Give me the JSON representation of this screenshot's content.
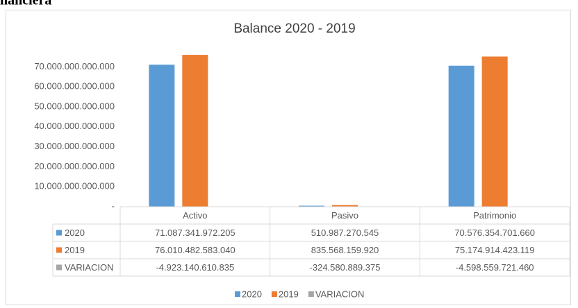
{
  "page_fragment": "nanciera",
  "chart_data": {
    "type": "bar",
    "title": "Balance 2020 - 2019",
    "categories": [
      "Activo",
      "Pasivo",
      "Patrimonio"
    ],
    "series": [
      {
        "name": "2020",
        "color": "#5b9bd5",
        "values": [
          71087341972205,
          510987270545,
          70576354701660
        ],
        "value_labels": [
          "71.087.341.972.205",
          "510.987.270.545",
          "70.576.354.701.660"
        ]
      },
      {
        "name": "2019",
        "color": "#ed7d31",
        "values": [
          76010482583040,
          835568159920,
          75174914423119
        ],
        "value_labels": [
          "76.010.482.583.040",
          "835.568.159.920",
          "75.174.914.423.119"
        ]
      },
      {
        "name": "VARIACION",
        "color": "#a5a5a5",
        "values": [
          -4923140610835,
          -324580889375,
          -4598559721460
        ],
        "value_labels": [
          "-4.923.140.610.835",
          "-324.580.889.375",
          "-4.598.559.721.460"
        ]
      }
    ],
    "ylim": [
      0,
      80000000000000
    ],
    "yticks": [
      {
        "value": 0,
        "label": "-"
      },
      {
        "value": 10000000000000,
        "label": "10.000.000.000.000"
      },
      {
        "value": 20000000000000,
        "label": "20.000.000.000.000"
      },
      {
        "value": 30000000000000,
        "label": "30.000.000.000.000"
      },
      {
        "value": 40000000000000,
        "label": "40.000.000.000.000"
      },
      {
        "value": 50000000000000,
        "label": "50.000.000.000.000"
      },
      {
        "value": 60000000000000,
        "label": "60.000.000.000.000"
      },
      {
        "value": 70000000000000,
        "label": "70.000.000.000.000"
      }
    ],
    "legend": "bottom",
    "data_table": true
  }
}
